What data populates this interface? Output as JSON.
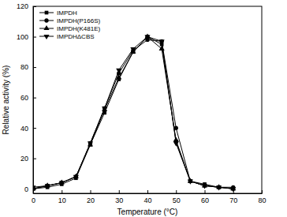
{
  "chart_data": {
    "type": "line",
    "x_label": "Temperature (°C)",
    "y_label": "Relative activity (%)",
    "x": [
      0,
      5,
      10,
      15,
      20,
      25,
      30,
      35,
      40,
      45,
      50,
      55,
      60,
      65,
      70
    ],
    "series": [
      {
        "name": "IMPDH",
        "color": "#000000",
        "marker": "square",
        "values": [
          0,
          1,
          3,
          7,
          29,
          50,
          72,
          90,
          100,
          95,
          31,
          5,
          3,
          1,
          0
        ]
      },
      {
        "name": "IMPDH(P166S)",
        "color": "#000000",
        "marker": "circle",
        "values": [
          0,
          2,
          4,
          8,
          30,
          53,
          76,
          91,
          98,
          97,
          40,
          5,
          2,
          1,
          1
        ]
      },
      {
        "name": "IMPDH(K481E)",
        "color": "#000000",
        "marker": "triangle",
        "values": [
          0,
          2,
          4,
          8,
          29,
          52,
          73,
          90,
          100,
          92,
          32,
          5,
          2,
          1,
          0
        ]
      },
      {
        "name": "IMPDHΔCBS",
        "color": "#000000",
        "marker": "triangle-down",
        "values": [
          1,
          2,
          4,
          8,
          30,
          53,
          78,
          92,
          100,
          97,
          30,
          5,
          2,
          1,
          0
        ]
      }
    ],
    "xlim": [
      0,
      80
    ],
    "xticks": [
      0,
      10,
      20,
      30,
      40,
      50,
      60,
      70,
      80
    ],
    "ylim": [
      -3,
      120
    ],
    "yticks": [
      0,
      20,
      40,
      60,
      80,
      100,
      120
    ],
    "legend": "upper left"
  }
}
